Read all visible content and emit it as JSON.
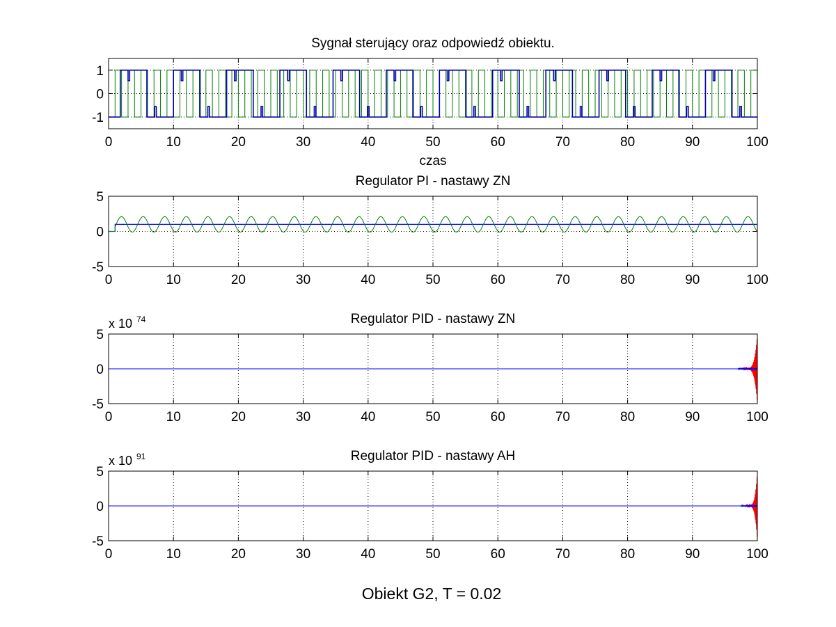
{
  "figure": {
    "suptitle": "Obiekt G2, T = 0.02"
  },
  "chart_data": [
    {
      "type": "line",
      "title": "Sygnał sterujący oraz odpowiedź obiektu.",
      "xlabel": "czas",
      "ylabel": "",
      "xlim": [
        0,
        100
      ],
      "ylim": [
        -1.5,
        1.5
      ],
      "xticks": [
        "0",
        "10",
        "20",
        "30",
        "40",
        "50",
        "60",
        "70",
        "80",
        "90",
        "100"
      ],
      "yticks": [
        "-1",
        "0",
        "1"
      ],
      "ytick_values": [
        -1,
        0,
        1
      ],
      "grid": true,
      "colors": {
        "control_signal": "#0000aa",
        "object_response": "#007f00"
      },
      "signal_description": {
        "green": "square wave between -1 and 1 with switching roughly every 1 time unit",
        "blue": "square wave between -1 and 1, pulses mostly following the green signal"
      }
    },
    {
      "type": "line",
      "title": "Regulator PI - nastawy ZN",
      "xlabel": "",
      "ylabel": "",
      "xlim": [
        0,
        100
      ],
      "ylim": [
        -5,
        5
      ],
      "xticks": [
        "0",
        "10",
        "20",
        "30",
        "40",
        "50",
        "60",
        "70",
        "80",
        "90",
        "100"
      ],
      "yticks": [
        "5",
        "0",
        "-5"
      ],
      "ytick_values": [
        5,
        0,
        -5
      ],
      "grid": true,
      "colors": {
        "setpoint": "#0000ff",
        "output": "#007f00"
      },
      "series": [
        {
          "name": "",
          "color": "#0000ff",
          "x": [
            0,
            1,
            1,
            100
          ],
          "y": [
            0,
            0,
            1,
            1
          ]
        },
        {
          "name": "",
          "color": "#007f00",
          "oscillation": {
            "start": 1,
            "mean": 1.0,
            "amplitude": 1.1,
            "period": 3.33,
            "end": 100
          }
        }
      ]
    },
    {
      "type": "line",
      "title": "Regulator PID - nastawy ZN",
      "exponent_base": "x 10",
      "exponent_power": "74",
      "xlabel": "",
      "ylabel": "",
      "xlim": [
        0,
        100
      ],
      "ylim": [
        -5,
        5
      ],
      "xticks": [
        "0",
        "10",
        "20",
        "30",
        "40",
        "50",
        "60",
        "70",
        "80",
        "90",
        "100"
      ],
      "yticks": [
        "5",
        "0",
        "-5"
      ],
      "ytick_values": [
        5,
        0,
        -5
      ],
      "grid": true,
      "colors": {
        "setpoint": "#0000ff",
        "diverging": "#ff0000"
      },
      "series": [
        {
          "name": "",
          "color": "#0000ff",
          "x": [
            0,
            100
          ],
          "y": [
            0,
            0
          ]
        },
        {
          "name": "",
          "color": "#ff0000",
          "divergence": {
            "start": 97.5,
            "end": 100,
            "max_amplitude": 4.8
          }
        }
      ]
    },
    {
      "type": "line",
      "title": "Regulator PID - nastawy AH",
      "exponent_base": "x 10",
      "exponent_power": "91",
      "xlabel": "",
      "ylabel": "",
      "xlim": [
        0,
        100
      ],
      "ylim": [
        -5,
        5
      ],
      "xticks": [
        "0",
        "10",
        "20",
        "30",
        "40",
        "50",
        "60",
        "70",
        "80",
        "90",
        "100"
      ],
      "yticks": [
        "5",
        "0",
        "-5"
      ],
      "ytick_values": [
        5,
        0,
        -5
      ],
      "grid": true,
      "colors": {
        "setpoint": "#0000ff",
        "diverging": "#ff0000"
      },
      "series": [
        {
          "name": "",
          "color": "#0000ff",
          "x": [
            0,
            100
          ],
          "y": [
            0,
            0
          ]
        },
        {
          "name": "",
          "color": "#ff0000",
          "divergence": {
            "start": 98.0,
            "end": 100,
            "max_amplitude": 4.8
          }
        }
      ]
    }
  ]
}
